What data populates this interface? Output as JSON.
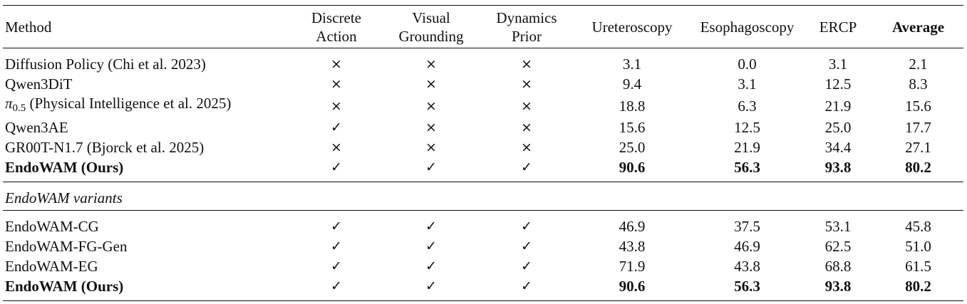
{
  "table": {
    "headers": {
      "method": "Method",
      "discrete_action": [
        "Discrete",
        "Action"
      ],
      "visual_grounding": [
        "Visual",
        "Grounding"
      ],
      "dynamics_prior": [
        "Dynamics",
        "Prior"
      ],
      "ureteroscopy": "Ureteroscopy",
      "esophagoscopy": "Esophagoscopy",
      "ercp": "ERCP",
      "average": "Average"
    },
    "marks": {
      "yes": "✓",
      "no": "×"
    },
    "baselines": [
      {
        "method": "Diffusion Policy (Chi et al. 2023)",
        "discrete_action": "×",
        "visual_grounding": "×",
        "dynamics_prior": "×",
        "ureteroscopy": "3.1",
        "esophagoscopy": "0.0",
        "ercp": "3.1",
        "average": "2.1"
      },
      {
        "method": "Qwen3DiT",
        "discrete_action": "×",
        "visual_grounding": "×",
        "dynamics_prior": "×",
        "ureteroscopy": "9.4",
        "esophagoscopy": "3.1",
        "ercp": "12.5",
        "average": "8.3"
      },
      {
        "method_symbol": "π",
        "method_subscript": "0.5",
        "method_rest": " (Physical Intelligence et al. 2025)",
        "discrete_action": "×",
        "visual_grounding": "×",
        "dynamics_prior": "×",
        "ureteroscopy": "18.8",
        "esophagoscopy": "6.3",
        "ercp": "21.9",
        "average": "15.6"
      },
      {
        "method": "Qwen3AE",
        "discrete_action": "✓",
        "visual_grounding": "×",
        "dynamics_prior": "×",
        "ureteroscopy": "15.6",
        "esophagoscopy": "12.5",
        "ercp": "25.0",
        "average": "17.7"
      },
      {
        "method": "GR00T-N1.7 (Bjorck et al. 2025)",
        "discrete_action": "×",
        "visual_grounding": "×",
        "dynamics_prior": "×",
        "ureteroscopy": "25.0",
        "esophagoscopy": "21.9",
        "ercp": "34.4",
        "average": "27.1"
      },
      {
        "method": "EndoWAM (Ours)",
        "discrete_action": "✓",
        "visual_grounding": "✓",
        "dynamics_prior": "✓",
        "ureteroscopy": "90.6",
        "esophagoscopy": "56.3",
        "ercp": "93.8",
        "average": "80.2",
        "bold": true
      }
    ],
    "variants_heading": "EndoWAM variants",
    "variants": [
      {
        "method": "EndoWAM-CG",
        "discrete_action": "✓",
        "visual_grounding": "✓",
        "dynamics_prior": "✓",
        "ureteroscopy": "46.9",
        "esophagoscopy": "37.5",
        "ercp": "53.1",
        "average": "45.8"
      },
      {
        "method": "EndoWAM-FG-Gen",
        "discrete_action": "✓",
        "visual_grounding": "✓",
        "dynamics_prior": "✓",
        "ureteroscopy": "43.8",
        "esophagoscopy": "46.9",
        "ercp": "62.5",
        "average": "51.0"
      },
      {
        "method": "EndoWAM-EG",
        "discrete_action": "✓",
        "visual_grounding": "✓",
        "dynamics_prior": "✓",
        "ureteroscopy": "71.9",
        "esophagoscopy": "43.8",
        "ercp": "68.8",
        "average": "61.5"
      },
      {
        "method": "EndoWAM (Ours)",
        "discrete_action": "✓",
        "visual_grounding": "✓",
        "dynamics_prior": "✓",
        "ureteroscopy": "90.6",
        "esophagoscopy": "56.3",
        "ercp": "93.8",
        "average": "80.2",
        "bold": true
      }
    ]
  }
}
